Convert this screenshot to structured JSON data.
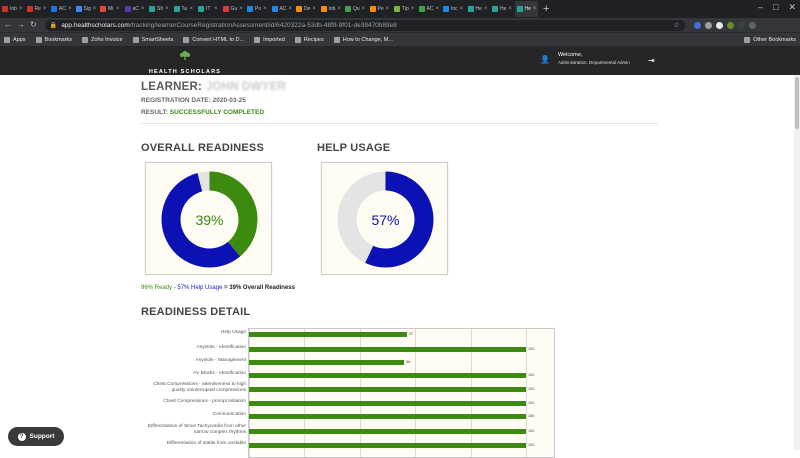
{
  "browser": {
    "tabs": [
      {
        "label": "Inb",
        "color": "#d93025"
      },
      {
        "label": "Re",
        "color": "#d93025"
      },
      {
        "label": "AC",
        "color": "#1a73e8"
      },
      {
        "label": "Sig",
        "color": "#4285f4"
      },
      {
        "label": "Mi",
        "color": "#e8453c"
      },
      {
        "label": "aC",
        "color": "#5e35b1"
      },
      {
        "label": "Sh",
        "color": "#26a69a"
      },
      {
        "label": "Ta",
        "color": "#26a69a"
      },
      {
        "label": "IT",
        "color": "#26a69a"
      },
      {
        "label": "Gu",
        "color": "#e53935"
      },
      {
        "label": "Po",
        "color": "#1e88e5"
      },
      {
        "label": "AC",
        "color": "#1e88e5"
      },
      {
        "label": "De",
        "color": "#fb8c00"
      },
      {
        "label": "Inb",
        "color": "#fb8c00"
      },
      {
        "label": "Qu",
        "color": "#43a047"
      },
      {
        "label": "Pe",
        "color": "#fb8c00"
      },
      {
        "label": "Tip",
        "color": "#7cb342"
      },
      {
        "label": "AC",
        "color": "#43a047"
      },
      {
        "label": "Inc",
        "color": "#1e88e5"
      },
      {
        "label": "He",
        "color": "#26a69a"
      },
      {
        "label": "He",
        "color": "#26a69a"
      },
      {
        "label": "He",
        "color": "#26a69a"
      }
    ],
    "url_host": "app.healthscholars.com",
    "url_path": "/tracking/learnerCourseRegistrationAssessment/id/6420322a-53db-48f9-9f01-de38470b88e8",
    "bookmarks": [
      "Apps",
      "Bookmarks",
      "Zoho Invoice",
      "SmartSheets",
      "Convert HTML to D...",
      "Imported",
      "Recipes",
      "How to Change, M..."
    ],
    "other_bookmarks": "Other Bookmarks"
  },
  "header": {
    "logo_text": "HEALTH SCHOLARS",
    "welcome": "Welcome,",
    "user_name": "",
    "role": "Administration, Departmental Admin"
  },
  "learner": {
    "label": "LEARNER:",
    "name": "JOHN DWYER",
    "registration_label": "REGISTRATION DATE:",
    "registration_date": "2020-03-25",
    "result_label": "RESULT:",
    "result_value": "SUCCESSFULLY COMPLETED"
  },
  "overall_readiness": {
    "title": "OVERALL READINESS",
    "percent_label": "39%",
    "value": 39,
    "colors": {
      "ready": "#3c8a10",
      "help": "#0b11b3",
      "rest": "#e4e4e4"
    }
  },
  "help_usage": {
    "title": "HELP USAGE",
    "percent_label": "57%",
    "value": 57,
    "colors": {
      "used": "#0b11b3",
      "rest": "#e4e4e4"
    }
  },
  "summary": {
    "ready": "96% Ready",
    "minus": " - ",
    "help": "57% Help Usage",
    "equals": " = 39% Overall Readiness"
  },
  "readiness_detail": {
    "title": "READINESS DETAIL",
    "chart_data": {
      "type": "bar",
      "orientation": "horizontal",
      "xlim": [
        0,
        100
      ],
      "categories": [
        "Help Usage",
        "Asystole - Identification",
        "Asystole - Management",
        "AV Blocks - Identification",
        "Chest Compressions - attentiveness to high quality uninterrupted compressions",
        "Chest Compressions - prompt initiation",
        "Communication",
        "Differentiation of Sinus Tachycardia from other narrow complex rhythms",
        "Differentiation of stable from unstable"
      ],
      "values": [
        57,
        100,
        56,
        100,
        100,
        100,
        100,
        100,
        100
      ],
      "value_labels": [
        "57",
        "100",
        "56",
        "100",
        "100",
        "100",
        "100",
        "100",
        "100"
      ]
    },
    "bar_color": "#3c8a10"
  },
  "support": {
    "label": "Support"
  }
}
